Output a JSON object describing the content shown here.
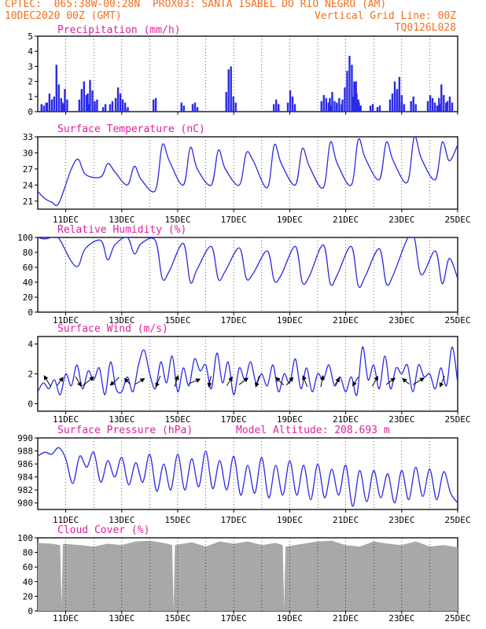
{
  "header": {
    "line1_left": "CPTEC:  065:38W-00:28N  PROX03: SANTA ISABEL DO RIO NEGRO (AM)",
    "line2_left": "10DEC2020 00Z (GMT)",
    "line2_right": "Vertical Grid Line: 00Z",
    "line3_right": "TQ0126L028"
  },
  "colors": {
    "header": "#f07020",
    "panel_title": "#e0209a",
    "series": "#2a2ae6",
    "cloud": "#a8a8a8",
    "arrow": "#000000",
    "grid": "#000000"
  },
  "chart_data": [
    {
      "id": "precipitation",
      "type": "bar",
      "title": "Precipitation (mm/h)",
      "ylim": [
        0,
        5
      ],
      "yticks": [
        "0",
        "1",
        "2",
        "3",
        "4",
        "5"
      ],
      "x_date_labels": [],
      "x_range_days": [
        10,
        25
      ],
      "events": [
        {
          "day": 10.1,
          "values": [
            0.5,
            0.4,
            0.6
          ]
        },
        {
          "day": 10.3,
          "values": [
            0.6,
            1.2,
            0.8
          ]
        },
        {
          "day": 10.55,
          "values": [
            1.0,
            3.1,
            1.8,
            0.9,
            0.5
          ]
        },
        {
          "day": 10.85,
          "values": [
            0.6,
            1.5,
            0.8
          ]
        },
        {
          "day": 11.45,
          "values": [
            0.8,
            1.5,
            2.0,
            1.1,
            0.5
          ]
        },
        {
          "day": 11.75,
          "values": [
            1.2,
            2.1,
            1.4,
            0.7
          ]
        },
        {
          "day": 12.0,
          "values": [
            0.5,
            0.8
          ]
        },
        {
          "day": 12.3,
          "values": [
            0.3,
            0.5
          ]
        },
        {
          "day": 12.55,
          "values": [
            0.5,
            0.7
          ]
        },
        {
          "day": 12.75,
          "values": [
            0.9,
            1.6,
            1.2,
            0.8,
            0.6
          ]
        },
        {
          "day": 13.1,
          "values": [
            0.2,
            0.3
          ]
        },
        {
          "day": 14.1,
          "values": [
            0.8,
            0.9
          ]
        },
        {
          "day": 15.1,
          "values": [
            0.6,
            0.4
          ]
        },
        {
          "day": 15.5,
          "values": [
            0.5,
            0.6,
            0.3
          ]
        },
        {
          "day": 16.7,
          "values": [
            1.3,
            2.8,
            3.0,
            1.0,
            0.6
          ]
        },
        {
          "day": 18.4,
          "values": [
            0.5,
            0.8,
            0.5
          ]
        },
        {
          "day": 18.9,
          "values": [
            0.6,
            1.4,
            1.0,
            0.5
          ]
        },
        {
          "day": 20.1,
          "values": [
            0.7,
            1.1,
            0.9,
            0.6,
            0.4
          ]
        },
        {
          "day": 20.4,
          "values": [
            0.9,
            1.3,
            0.7,
            0.5
          ]
        },
        {
          "day": 20.65,
          "values": [
            0.6,
            0.9,
            0.5
          ]
        },
        {
          "day": 20.85,
          "values": [
            0.8,
            1.6,
            2.7,
            3.7,
            3.1,
            2.0,
            1.2,
            0.6
          ]
        },
        {
          "day": 21.25,
          "values": [
            1.0,
            2.0,
            0.8,
            0.4
          ]
        },
        {
          "day": 21.85,
          "values": [
            0.4,
            0.5
          ]
        },
        {
          "day": 22.1,
          "values": [
            0.3,
            0.4
          ]
        },
        {
          "day": 22.55,
          "values": [
            0.8,
            1.2,
            2.0,
            1.5,
            0.6,
            0.4
          ]
        },
        {
          "day": 22.8,
          "values": [
            1.3,
            2.3,
            1.1,
            0.5
          ]
        },
        {
          "day": 23.3,
          "values": [
            0.7,
            1.0,
            0.5
          ]
        },
        {
          "day": 23.9,
          "values": [
            0.7,
            1.1,
            0.9,
            0.6,
            0.4,
            0.5
          ]
        },
        {
          "day": 24.3,
          "values": [
            0.9,
            1.8,
            1.1,
            0.6
          ]
        },
        {
          "day": 24.6,
          "values": [
            0.7,
            1.0,
            0.6
          ]
        }
      ]
    },
    {
      "id": "surface_temperature",
      "type": "line",
      "title": "Surface Temperature (nC)",
      "ylim": [
        19.5,
        33
      ],
      "yticks": [
        "21",
        "24",
        "27",
        "30",
        "33"
      ],
      "x_date_labels": [
        "11DEC",
        "13DEC",
        "15DEC",
        "17DEC",
        "19DEC",
        "21DEC",
        "23DEC",
        "25DEC"
      ],
      "x_range_days": [
        10,
        25
      ],
      "x": [
        10.0,
        10.25,
        10.5,
        10.75,
        11.2,
        11.45,
        11.7,
        12.25,
        12.5,
        12.75,
        13.2,
        13.45,
        13.7,
        14.2,
        14.45,
        14.7,
        15.2,
        15.45,
        15.7,
        16.2,
        16.45,
        16.7,
        17.2,
        17.45,
        17.7,
        18.2,
        18.45,
        18.7,
        19.2,
        19.45,
        19.7,
        20.2,
        20.45,
        20.7,
        21.2,
        21.45,
        21.7,
        22.2,
        22.45,
        22.7,
        23.2,
        23.45,
        23.7,
        24.2,
        24.45,
        24.7,
        25.0
      ],
      "y": [
        22.8,
        21.5,
        20.8,
        20.6,
        27.0,
        28.8,
        26.0,
        25.5,
        28.0,
        26.5,
        24.0,
        27.5,
        25.0,
        23.0,
        31.5,
        28.5,
        24.0,
        31.0,
        27.0,
        24.0,
        30.5,
        27.0,
        24.0,
        30.0,
        28.5,
        23.5,
        31.5,
        28.0,
        24.0,
        30.8,
        27.5,
        23.5,
        32.0,
        28.0,
        24.0,
        32.5,
        29.0,
        25.0,
        32.0,
        28.5,
        24.5,
        33.0,
        29.0,
        25.0,
        32.0,
        28.5,
        31.5
      ]
    },
    {
      "id": "relative_humidity",
      "type": "line",
      "title": "Relative Humidity (%)",
      "ylim": [
        0,
        100
      ],
      "yticks": [
        "0",
        "20",
        "40",
        "60",
        "80",
        "100"
      ],
      "x_date_labels": [
        "11DEC",
        "13DEC",
        "15DEC",
        "17DEC",
        "19DEC",
        "21DEC",
        "23DEC",
        "25DEC"
      ],
      "x_range_days": [
        10,
        25
      ],
      "x": [
        10.0,
        10.25,
        10.5,
        10.75,
        11.2,
        11.45,
        11.7,
        12.25,
        12.5,
        12.75,
        13.2,
        13.45,
        13.7,
        14.2,
        14.45,
        14.7,
        15.2,
        15.45,
        15.7,
        16.2,
        16.45,
        16.7,
        17.2,
        17.45,
        17.7,
        18.2,
        18.45,
        18.7,
        19.2,
        19.45,
        19.7,
        20.2,
        20.45,
        20.7,
        21.2,
        21.45,
        21.7,
        22.2,
        22.45,
        22.7,
        23.2,
        23.45,
        23.7,
        24.2,
        24.45,
        24.7,
        25.0
      ],
      "y": [
        100,
        98,
        100,
        99,
        68,
        62,
        85,
        96,
        70,
        90,
        100,
        78,
        92,
        96,
        45,
        55,
        92,
        40,
        58,
        88,
        44,
        55,
        86,
        45,
        52,
        82,
        42,
        50,
        88,
        40,
        48,
        90,
        38,
        50,
        88,
        35,
        48,
        85,
        38,
        50,
        98,
        100,
        50,
        82,
        38,
        72,
        45
      ]
    },
    {
      "id": "surface_wind",
      "type": "line",
      "title": "Surface Wind (m/s)",
      "ylim": [
        -0.5,
        4.5
      ],
      "yticks": [
        "0",
        "2",
        "4"
      ],
      "x_date_labels": [
        "11DEC",
        "13DEC",
        "15DEC",
        "17DEC",
        "19DEC",
        "21DEC",
        "23DEC",
        "25DEC"
      ],
      "x_range_days": [
        10,
        25
      ],
      "x": [
        10.0,
        10.2,
        10.4,
        10.6,
        10.8,
        11.0,
        11.2,
        11.4,
        11.6,
        11.8,
        12.0,
        12.2,
        12.4,
        12.6,
        12.8,
        13.0,
        13.2,
        13.4,
        13.6,
        13.8,
        14.0,
        14.2,
        14.4,
        14.6,
        14.8,
        15.0,
        15.2,
        15.4,
        15.6,
        15.8,
        16.0,
        16.2,
        16.4,
        16.6,
        16.8,
        17.0,
        17.2,
        17.4,
        17.6,
        17.8,
        18.0,
        18.2,
        18.4,
        18.6,
        18.8,
        19.0,
        19.2,
        19.4,
        19.6,
        19.8,
        20.0,
        20.2,
        20.4,
        20.6,
        20.8,
        21.0,
        21.2,
        21.4,
        21.6,
        21.8,
        22.0,
        22.2,
        22.4,
        22.6,
        22.8,
        23.0,
        23.2,
        23.4,
        23.6,
        23.8,
        24.0,
        24.2,
        24.4,
        24.6,
        24.8,
        25.0
      ],
      "y": [
        0.8,
        1.4,
        1.0,
        1.6,
        0.6,
        2.0,
        1.2,
        2.6,
        1.0,
        2.2,
        1.6,
        2.4,
        0.6,
        2.8,
        1.0,
        0.8,
        1.8,
        0.8,
        2.6,
        3.6,
        2.0,
        1.0,
        2.8,
        1.4,
        3.2,
        0.8,
        2.4,
        1.2,
        3.0,
        2.2,
        2.6,
        1.0,
        3.4,
        1.4,
        2.8,
        0.6,
        2.4,
        1.6,
        2.8,
        1.4,
        2.0,
        1.2,
        2.6,
        0.8,
        2.0,
        1.4,
        3.0,
        1.0,
        2.4,
        0.8,
        2.0,
        1.6,
        2.6,
        1.2,
        1.8,
        0.8,
        1.8,
        0.6,
        3.8,
        1.6,
        2.6,
        1.0,
        3.2,
        1.0,
        2.4,
        2.0,
        2.6,
        0.8,
        2.6,
        1.8,
        2.0,
        1.0,
        2.4,
        1.2,
        3.8,
        1.4
      ],
      "arrows": [
        {
          "day": 10.35,
          "dx": -0.6,
          "dy": 1.0
        },
        {
          "day": 10.8,
          "dx": 0.5,
          "dy": 0.7
        },
        {
          "day": 11.45,
          "dx": 0.5,
          "dy": -0.9
        },
        {
          "day": 11.8,
          "dx": 1.0,
          "dy": 0.8
        },
        {
          "day": 12.75,
          "dx": -0.8,
          "dy": -0.7
        },
        {
          "day": 13.2,
          "dx": -0.5,
          "dy": 0.5
        },
        {
          "day": 13.65,
          "dx": 0.8,
          "dy": 0.5
        },
        {
          "day": 14.3,
          "dx": -0.4,
          "dy": -1.0
        },
        {
          "day": 14.95,
          "dx": 0.3,
          "dy": 1.0
        },
        {
          "day": 15.6,
          "dx": 1.0,
          "dy": 0.4
        },
        {
          "day": 16.15,
          "dx": -0.2,
          "dy": -1.0
        },
        {
          "day": 16.85,
          "dx": 0.5,
          "dy": 0.8
        },
        {
          "day": 17.35,
          "dx": 0.8,
          "dy": 0.6
        },
        {
          "day": 17.85,
          "dx": -0.3,
          "dy": -1.0
        },
        {
          "day": 18.65,
          "dx": -0.7,
          "dy": 0.7
        },
        {
          "day": 19.0,
          "dx": 0.6,
          "dy": 0.7
        },
        {
          "day": 19.55,
          "dx": -0.4,
          "dy": 1.0
        },
        {
          "day": 20.15,
          "dx": 0.2,
          "dy": 1.0
        },
        {
          "day": 20.7,
          "dx": 0.4,
          "dy": 0.6
        },
        {
          "day": 21.35,
          "dx": -0.5,
          "dy": -0.8
        },
        {
          "day": 22.05,
          "dx": 0.5,
          "dy": 0.9
        },
        {
          "day": 22.6,
          "dx": 0.8,
          "dy": 0.6
        },
        {
          "day": 23.15,
          "dx": -0.6,
          "dy": 0.5
        },
        {
          "day": 23.6,
          "dx": 1.0,
          "dy": 0.6
        },
        {
          "day": 24.45,
          "dx": -0.4,
          "dy": -1.0
        }
      ]
    },
    {
      "id": "surface_pressure",
      "type": "line",
      "title": "Surface Pressure (hPa)",
      "subtitle": "Model Altitude: 208.693 m",
      "ylim": [
        979,
        990
      ],
      "yticks": [
        "980",
        "982",
        "984",
        "986",
        "988",
        "990"
      ],
      "x_date_labels": [
        "11DEC",
        "13DEC",
        "15DEC",
        "17DEC",
        "19DEC",
        "21DEC",
        "23DEC",
        "25DEC"
      ],
      "x_range_days": [
        10,
        25
      ],
      "x": [
        10.0,
        10.25,
        10.5,
        10.75,
        11.0,
        11.25,
        11.5,
        11.75,
        12.0,
        12.25,
        12.5,
        12.75,
        13.0,
        13.25,
        13.5,
        13.75,
        14.0,
        14.25,
        14.5,
        14.75,
        15.0,
        15.25,
        15.5,
        15.75,
        16.0,
        16.25,
        16.5,
        16.75,
        17.0,
        17.25,
        17.5,
        17.75,
        18.0,
        18.25,
        18.5,
        18.75,
        19.0,
        19.25,
        19.5,
        19.75,
        20.0,
        20.25,
        20.5,
        20.75,
        21.0,
        21.25,
        21.5,
        21.75,
        22.0,
        22.25,
        22.5,
        22.75,
        23.0,
        23.25,
        23.5,
        23.75,
        24.0,
        24.25,
        24.5,
        24.75,
        25.0
      ],
      "y": [
        987.2,
        987.8,
        987.5,
        988.5,
        986.8,
        983.0,
        987.2,
        985.5,
        987.8,
        983.2,
        986.5,
        984.0,
        987.0,
        982.8,
        986.2,
        983.2,
        987.5,
        981.8,
        986.0,
        982.0,
        987.5,
        982.0,
        986.8,
        982.5,
        988.0,
        982.2,
        986.5,
        982.0,
        987.2,
        981.2,
        985.8,
        981.5,
        987.0,
        980.8,
        985.8,
        981.2,
        986.5,
        981.2,
        985.8,
        980.5,
        986.0,
        980.8,
        985.2,
        981.2,
        985.8,
        979.5,
        985.0,
        980.2,
        985.0,
        980.8,
        984.5,
        980.0,
        985.0,
        980.5,
        985.5,
        981.0,
        985.2,
        980.5,
        984.8,
        981.5,
        980.0
      ]
    },
    {
      "id": "cloud_cover",
      "type": "area",
      "title": "Cloud Cover (%)",
      "ylim": [
        0,
        100
      ],
      "yticks": [
        "0",
        "20",
        "40",
        "60",
        "80",
        "100"
      ],
      "x_date_labels": [
        "11DEC",
        "13DEC",
        "15DEC",
        "17DEC",
        "19DEC",
        "21DEC",
        "23DEC",
        "25DEC"
      ],
      "x_range_days": [
        10,
        25
      ],
      "x": [
        10.0,
        10.5,
        10.8,
        10.85,
        10.9,
        11.5,
        12.0,
        12.5,
        13.0,
        13.5,
        14.0,
        14.5,
        14.8,
        14.85,
        14.9,
        15.5,
        16.0,
        16.5,
        17.0,
        17.5,
        18.0,
        18.5,
        18.75,
        18.8,
        18.85,
        19.5,
        20.0,
        20.5,
        21.0,
        21.5,
        22.0,
        22.5,
        23.0,
        23.5,
        24.0,
        24.5,
        25.0
      ],
      "y": [
        93,
        92,
        90,
        8,
        92,
        90,
        88,
        92,
        90,
        95,
        96,
        93,
        90,
        3,
        90,
        94,
        88,
        95,
        92,
        95,
        90,
        93,
        90,
        5,
        88,
        92,
        95,
        96,
        90,
        88,
        95,
        92,
        90,
        95,
        88,
        90,
        87
      ]
    }
  ]
}
